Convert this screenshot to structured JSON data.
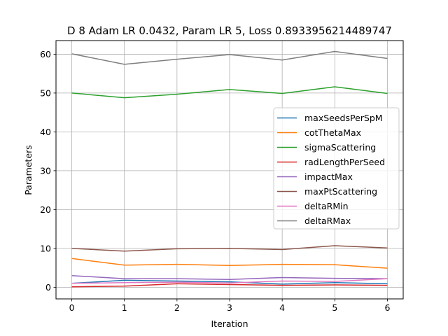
{
  "chart_data": {
    "type": "line",
    "title": "D 8 Adam LR 0.0432, Param LR 5, Loss 0.8933956214489747",
    "xlabel": "Iteration",
    "ylabel": "Parameters",
    "x": [
      0,
      1,
      2,
      3,
      4,
      5,
      6
    ],
    "xlim": [
      -0.3,
      6.3
    ],
    "ylim": [
      -3,
      63.5
    ],
    "xticks": [
      "0",
      "1",
      "2",
      "3",
      "4",
      "5",
      "6"
    ],
    "yticks": [
      "0",
      "10",
      "20",
      "30",
      "40",
      "50",
      "60"
    ],
    "grid": true,
    "legend_position": "center-right",
    "series": [
      {
        "name": "maxSeedsPerSpM",
        "color": "#1f77b4",
        "values": [
          1.0,
          1.8,
          1.6,
          1.4,
          0.8,
          1.2,
          0.9
        ]
      },
      {
        "name": "cotThetaMax",
        "color": "#ff7f0e",
        "values": [
          7.4,
          5.7,
          5.9,
          5.6,
          5.9,
          5.8,
          4.9
        ]
      },
      {
        "name": "sigmaScattering",
        "color": "#2ca02c",
        "values": [
          50.0,
          48.8,
          49.7,
          50.9,
          49.9,
          51.6,
          49.9
        ]
      },
      {
        "name": "radLengthPerSeed",
        "color": "#d62728",
        "values": [
          0.1,
          0.3,
          0.9,
          0.7,
          0.5,
          0.6,
          0.5
        ]
      },
      {
        "name": "impactMax",
        "color": "#9467bd",
        "values": [
          3.0,
          2.2,
          2.2,
          2.0,
          2.5,
          2.3,
          2.2
        ]
      },
      {
        "name": "maxPtScattering",
        "color": "#8c564b",
        "values": [
          10.0,
          9.3,
          9.9,
          10.0,
          9.7,
          10.7,
          10.1
        ]
      },
      {
        "name": "deltaRMin",
        "color": "#e377c2",
        "values": [
          1.0,
          1.2,
          1.3,
          1.1,
          1.6,
          1.5,
          2.2
        ]
      },
      {
        "name": "deltaRMax",
        "color": "#7f7f7f",
        "values": [
          60.1,
          57.4,
          58.7,
          59.9,
          58.5,
          60.7,
          58.9
        ]
      }
    ]
  }
}
